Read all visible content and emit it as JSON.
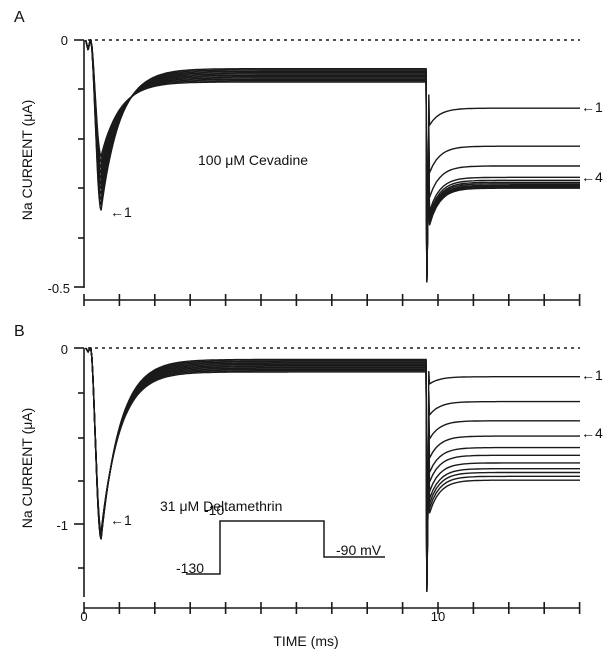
{
  "chart_data": [
    {
      "type": "line",
      "panel_label": "A",
      "annotation": "100 μM Cevadine",
      "ylabel": "Na CURRENT (μA)",
      "y_tick_labels": [
        "0",
        "-0.5"
      ],
      "ylim": [
        -0.5,
        0
      ],
      "xlim": [
        0,
        14.5
      ],
      "trace_marker_labels": [
        {
          "text": "←1",
          "x": 0.7,
          "y": -0.345
        },
        {
          "text": "←1",
          "x": 14.5,
          "y": -0.138
        },
        {
          "text": "←4",
          "x": 14.5,
          "y": -0.278
        }
      ],
      "traces": {
        "count": 11,
        "peak_min": -0.345,
        "peak_max": -0.235,
        "peak_time": 0.5,
        "plateau_min": -0.085,
        "plateau_max": -0.058,
        "tail_step_time": 10,
        "tail_levels": [
          -0.138,
          -0.215,
          -0.255,
          -0.278,
          -0.284,
          -0.288,
          -0.291,
          -0.294,
          -0.296,
          -0.298,
          -0.3
        ]
      }
    },
    {
      "type": "line",
      "panel_label": "B",
      "annotation": "31 μM Deltamethrin",
      "ylabel": "Na CURRENT  (μA)",
      "xlabel": "TIME (ms)",
      "y_tick_labels": [
        "0",
        "-1"
      ],
      "x_tick_labels": [
        "0",
        "10"
      ],
      "ylim": [
        -1.3,
        0
      ],
      "xlim": [
        0,
        14.5
      ],
      "trace_marker_labels": [
        {
          "text": "←1",
          "x": 0.7,
          "y": -1.0
        },
        {
          "text": "←1",
          "x": 14.5,
          "y": -0.15
        },
        {
          "text": "←4",
          "x": 14.5,
          "y": -0.46
        }
      ],
      "traces": {
        "count": 11,
        "peak_min": -1.0,
        "peak_max": -0.96,
        "peak_time": 0.5,
        "plateau_min": -0.125,
        "plateau_max": -0.06,
        "tail_step_time": 10,
        "tail_levels": [
          -0.15,
          -0.28,
          -0.38,
          -0.46,
          -0.52,
          -0.56,
          -0.6,
          -0.63,
          -0.65,
          -0.67,
          -0.69
        ]
      },
      "voltage_protocol": {
        "levels_mV": [
          -130,
          -10,
          -90
        ],
        "labels": [
          "-130",
          "-10",
          "-90 mV"
        ]
      }
    }
  ]
}
